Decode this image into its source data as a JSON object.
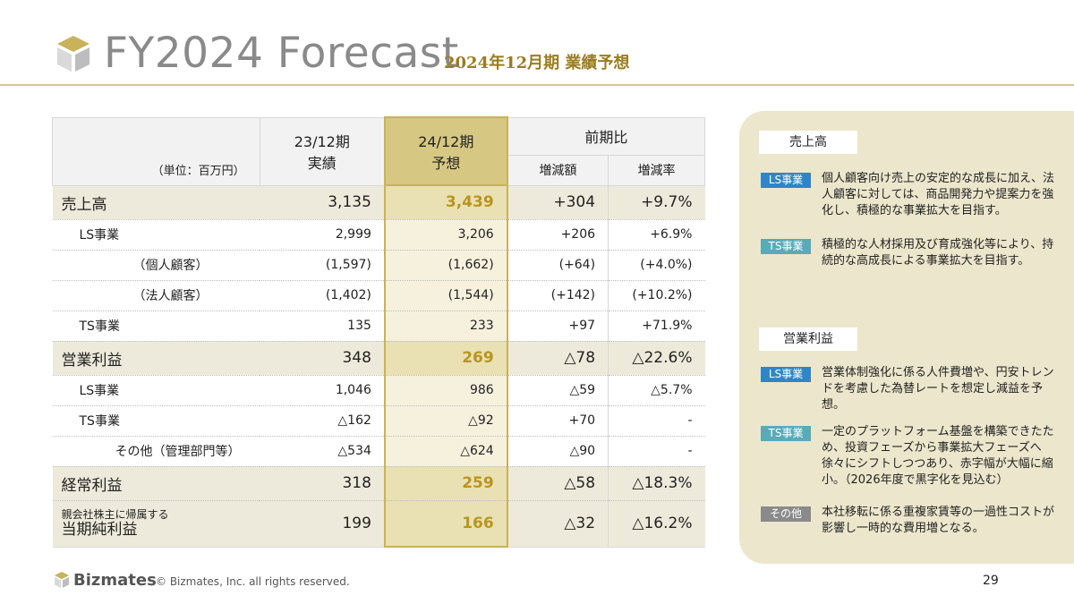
{
  "header": {
    "title": "FY2024 Forecast",
    "subtitle": "2024年12月期 業績予想"
  },
  "table": {
    "unit": "（単位：百万円）",
    "col_prev": "23/12期\n実績",
    "col_prev_l1": "23/12期",
    "col_prev_l2": "実績",
    "col_cur_l1": "24/12期",
    "col_cur_l2": "予想",
    "col_yoy": "前期比",
    "col_diff": "増減額",
    "col_rate": "増減率",
    "rows": [
      {
        "label": "売上高",
        "prev": "3,135",
        "cur": "3,439",
        "diff": "+304",
        "rate": "+9.7%"
      },
      {
        "label": "LS事業",
        "prev": "2,999",
        "cur": "3,206",
        "diff": "+206",
        "rate": "+6.9%"
      },
      {
        "label": "（個人顧客）",
        "prev": "(1,597)",
        "cur": "(1,662)",
        "diff": "(+64)",
        "rate": "(+4.0%)"
      },
      {
        "label": "（法人顧客）",
        "prev": "(1,402)",
        "cur": "(1,544)",
        "diff": "(+142)",
        "rate": "(+10.2%)"
      },
      {
        "label": "TS事業",
        "prev": "135",
        "cur": "233",
        "diff": "+97",
        "rate": "+71.9%"
      },
      {
        "label": "営業利益",
        "prev": "348",
        "cur": "269",
        "diff": "△78",
        "rate": "△22.6%"
      },
      {
        "label": "LS事業",
        "prev": "1,046",
        "cur": "986",
        "diff": "△59",
        "rate": "△5.7%"
      },
      {
        "label": "TS事業",
        "prev": "△162",
        "cur": "△92",
        "diff": "+70",
        "rate": "-"
      },
      {
        "label": "その他（管理部門等）",
        "prev": "△534",
        "cur": "△624",
        "diff": "△90",
        "rate": "-"
      },
      {
        "label": "経常利益",
        "prev": "318",
        "cur": "259",
        "diff": "△58",
        "rate": "△18.3%"
      },
      {
        "label_small": "親会社株主に帰属する",
        "label": "当期純利益",
        "prev": "199",
        "cur": "166",
        "diff": "△32",
        "rate": "△16.2%"
      }
    ]
  },
  "panel": {
    "sales_title": "売上高",
    "sales_ls_tag": "LS事業",
    "sales_ls_text": "個人顧客向け売上の安定的な成長に加え、法人顧客に対しては、商品開発力や提案力を強化し、積極的な事業拡大を目指す。",
    "sales_ts_tag": "TS事業",
    "sales_ts_text": "積極的な人材採用及び育成強化等により、持続的な高成長による事業拡大を目指す。",
    "op_title": "営業利益",
    "op_ls_tag": "LS事業",
    "op_ls_text": "営業体制強化に係る人件費増や、円安トレンドを考慮した為替レートを想定し減益を予想。",
    "op_ts_tag": "TS事業",
    "op_ts_text": "一定のプラットフォーム基盤を構築できたため、投資フェーズから事業拡大フェーズへ徐々にシフトしつつあり、赤字幅が大幅に縮小。（2026年度で黒字化を見込む）",
    "op_other_tag": "その他",
    "op_other_text": "本社移転に係る重複家賃等の一過性コストが影響し一時的な費用増となる。"
  },
  "footer": {
    "brand": "Bizmates",
    "copyright": "© Bizmates, Inc. all rights reserved.",
    "page": "29"
  },
  "colors": {
    "accent_gold": "#b8961e",
    "panel_bg": "#ece6cc",
    "tag_blue": "#2e86c8",
    "tag_teal": "#5aaab8",
    "tag_gray": "#8a8a8a"
  }
}
